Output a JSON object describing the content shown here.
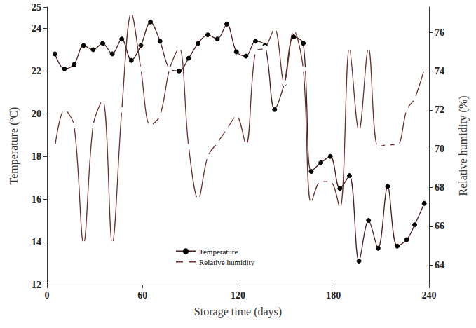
{
  "chart_data": {
    "type": "line",
    "x_label": "Storage time (days)",
    "y_label": "Temperature (ºC)",
    "y2_label": "Relative humidity (%)",
    "x": [
      5,
      11,
      17,
      23,
      29,
      35,
      41,
      47,
      53,
      59,
      65,
      71,
      77,
      83,
      89,
      95,
      101,
      107,
      113,
      119,
      125,
      131,
      137,
      143,
      149,
      155,
      161,
      166,
      172,
      178,
      184,
      190,
      196,
      202,
      208,
      214,
      220,
      226,
      231,
      237
    ],
    "series": [
      {
        "name": "Temperature",
        "color": "#4a1f1f",
        "marker": "filled",
        "values": [
          22.8,
          22.1,
          22.3,
          23.2,
          23.0,
          23.3,
          22.8,
          23.5,
          22.5,
          23.2,
          24.3,
          23.4,
          22.1,
          22.0,
          22.6,
          23.3,
          23.7,
          23.5,
          24.2,
          22.9,
          22.7,
          23.4,
          23.2,
          20.2,
          21.4,
          23.6,
          23.3,
          17.3,
          17.7,
          18.0,
          16.5,
          17.1,
          13.1,
          15.0,
          13.7,
          16.6,
          13.8,
          14.1,
          14.8,
          15.8
        ]
      },
      {
        "name": "Relative humidity",
        "color": "#6b3030",
        "marker": "open",
        "axis": "y2",
        "values": [
          70.1,
          72.0,
          71.2,
          65.1,
          71.2,
          72.5,
          65.1,
          72.0,
          77.0,
          74.1,
          71.2,
          71.7,
          74.1,
          75.2,
          70.1,
          67.4,
          69.6,
          70.3,
          71.0,
          71.7,
          70.2,
          75.0,
          75.2,
          76.2,
          73.4,
          76.1,
          74.1,
          67.2,
          68.3,
          68.3,
          66.9,
          75.2,
          70.9,
          75.2,
          70.1,
          70.2,
          70.2,
          72.0,
          72.6,
          74.1
        ]
      }
    ],
    "xlim": [
      0,
      240
    ],
    "xticks": [
      0,
      60,
      120,
      180,
      240
    ],
    "ylim": [
      12,
      25
    ],
    "yticks": [
      12,
      14,
      16,
      18,
      20,
      22,
      24
    ],
    "y2lim": [
      63,
      77.3
    ],
    "y2ticks": [
      64,
      66,
      68,
      70,
      72,
      74,
      76
    ],
    "grid": false,
    "legend": "bottom"
  }
}
